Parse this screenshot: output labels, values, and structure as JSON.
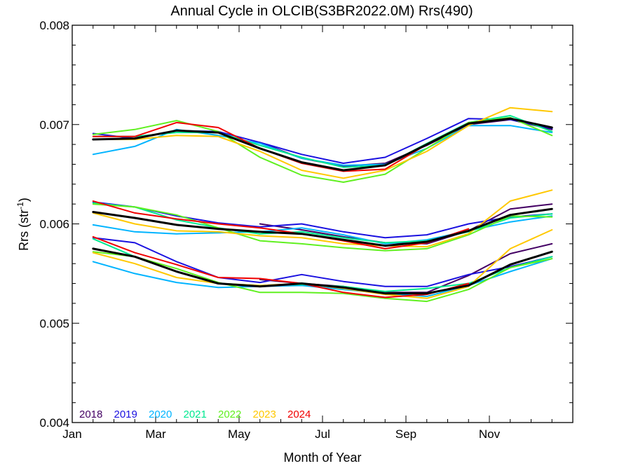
{
  "chart_data": {
    "type": "line",
    "title": "Annual Cycle in OLCIB(S3BR2022.0M) Rrs(490)",
    "xlabel": "Month of Year",
    "ylabel_main": "Rrs (str",
    "ylabel_sup": "-1",
    "ylabel_end": ")",
    "xlim": [
      0,
      12
    ],
    "ylim": [
      0.004,
      0.008
    ],
    "x_ticks": [
      {
        "value": 0,
        "label": "Jan"
      },
      {
        "value": 2,
        "label": "Mar"
      },
      {
        "value": 4,
        "label": "May"
      },
      {
        "value": 6,
        "label": "Jul"
      },
      {
        "value": 8,
        "label": "Sep"
      },
      {
        "value": 10,
        "label": "Nov"
      }
    ],
    "y_ticks": [
      {
        "value": 0.004,
        "label": "0.004"
      },
      {
        "value": 0.005,
        "label": "0.005"
      },
      {
        "value": 0.006,
        "label": "0.006"
      },
      {
        "value": 0.007,
        "label": "0.007"
      },
      {
        "value": 0.008,
        "label": "0.008"
      }
    ],
    "x": [
      0.5,
      1.5,
      2.5,
      3.5,
      4.5,
      5.5,
      6.5,
      7.5,
      8.5,
      9.5,
      10.5,
      11.5
    ],
    "legend_position": "bottom-left",
    "series": [
      {
        "name": "2018",
        "color": "#440064",
        "width": 2,
        "groups": [
          [
            null,
            null,
            null,
            null,
            0.00682,
            0.00666,
            0.00658,
            0.00661,
            0.00679,
            0.007,
            0.00705,
            0.00695
          ],
          [
            null,
            null,
            null,
            null,
            0.006,
            0.00594,
            0.00587,
            0.00581,
            0.0058,
            0.00593,
            0.00615,
            0.0062
          ],
          [
            null,
            null,
            null,
            null,
            0.00544,
            0.0054,
            0.00537,
            0.00531,
            0.00531,
            0.00548,
            0.0057,
            0.0058
          ]
        ]
      },
      {
        "name": "2019",
        "color": "#1a10e0",
        "width": 2,
        "groups": [
          [
            0.00691,
            0.00686,
            0.00694,
            0.00693,
            0.00682,
            0.0067,
            0.00661,
            0.00667,
            0.00686,
            0.00706,
            0.00705,
            0.00696
          ],
          [
            0.00622,
            0.00617,
            0.00608,
            0.00601,
            0.00597,
            0.006,
            0.00592,
            0.00586,
            0.00589,
            0.006,
            0.00607,
            0.0061
          ],
          [
            0.00586,
            0.00581,
            0.00562,
            0.00546,
            0.00541,
            0.00549,
            0.00542,
            0.00537,
            0.00537,
            0.00549,
            0.00557,
            0.00567
          ]
        ]
      },
      {
        "name": "2020",
        "color": "#00b4ff",
        "width": 2,
        "groups": [
          [
            0.0067,
            0.00678,
            0.00695,
            0.00689,
            0.00681,
            0.00666,
            0.00659,
            0.0066,
            0.00676,
            0.00699,
            0.00699,
            0.00692
          ],
          [
            0.00599,
            0.00592,
            0.0059,
            0.00591,
            0.00592,
            0.00596,
            0.00589,
            0.0058,
            0.00584,
            0.00593,
            0.00602,
            0.00608
          ],
          [
            0.00562,
            0.0055,
            0.00541,
            0.00536,
            0.00537,
            0.00538,
            0.00534,
            0.0053,
            0.00527,
            0.00538,
            0.00552,
            0.00565
          ]
        ]
      },
      {
        "name": "2021",
        "color": "#00e890",
        "width": 2,
        "groups": [
          [
            0.00688,
            0.00688,
            0.00692,
            0.00692,
            0.00679,
            0.00667,
            0.00657,
            0.00659,
            0.00681,
            0.00702,
            0.00709,
            0.00693
          ],
          [
            0.00621,
            0.00617,
            0.00604,
            0.00596,
            0.0059,
            0.00592,
            0.00586,
            0.00581,
            0.00583,
            0.00592,
            0.00606,
            0.0061
          ],
          [
            0.00585,
            0.00567,
            0.00552,
            0.0054,
            0.00538,
            0.00539,
            0.00537,
            0.00532,
            0.00535,
            0.0054,
            0.00556,
            0.00567
          ]
        ]
      },
      {
        "name": "2022",
        "color": "#60f020",
        "width": 2,
        "groups": [
          [
            0.0069,
            0.00695,
            0.00704,
            0.00693,
            0.00667,
            0.00649,
            0.00642,
            0.0065,
            0.00676,
            0.00702,
            0.00707,
            0.00689
          ],
          [
            0.0062,
            0.00617,
            0.00609,
            0.00596,
            0.00583,
            0.0058,
            0.00576,
            0.00573,
            0.00575,
            0.00589,
            0.00608,
            0.00607
          ],
          [
            0.00572,
            0.00567,
            0.00555,
            0.00541,
            0.00531,
            0.00531,
            0.0053,
            0.00525,
            0.00522,
            0.00534,
            0.00556,
            0.00565
          ]
        ]
      },
      {
        "name": "2023",
        "color": "#ffc800",
        "width": 2,
        "groups": [
          [
            0.00685,
            0.00685,
            0.00689,
            0.00688,
            0.00673,
            0.00654,
            0.00646,
            0.00654,
            0.00673,
            0.00699,
            0.00717,
            0.00713
          ],
          [
            0.00611,
            0.006,
            0.00593,
            0.00592,
            0.00588,
            0.00586,
            0.0058,
            0.00578,
            0.00577,
            0.0059,
            0.00623,
            0.00634
          ],
          [
            0.00571,
            0.0056,
            0.00546,
            0.0054,
            0.00538,
            0.0054,
            0.00535,
            0.00529,
            0.00525,
            0.00537,
            0.00575,
            0.00594
          ]
        ]
      },
      {
        "name": "2024",
        "color": "#f00000",
        "width": 2,
        "groups": [
          [
            0.00688,
            0.00688,
            0.00702,
            0.00697,
            0.00676,
            0.00661,
            0.00653,
            0.00655,
            0.0068,
            0.00701,
            null,
            null
          ],
          [
            0.00623,
            0.00611,
            0.00605,
            0.006,
            0.00596,
            0.0059,
            0.00583,
            0.00575,
            0.00581,
            0.00595,
            null,
            null
          ],
          [
            0.00587,
            0.00571,
            0.00559,
            0.00546,
            0.00545,
            0.0054,
            0.00531,
            0.00526,
            0.00529,
            0.0054,
            null,
            null
          ]
        ]
      },
      {
        "name": "",
        "color": "#000000",
        "width": 3,
        "groups": [
          [
            0.00685,
            0.00686,
            0.00694,
            0.00692,
            0.00676,
            0.00662,
            0.00654,
            0.00659,
            0.0068,
            0.00701,
            0.00706,
            0.00697
          ],
          [
            0.00612,
            0.00606,
            0.00599,
            0.00595,
            0.00592,
            0.0059,
            0.00584,
            0.00578,
            0.00582,
            0.00593,
            0.00609,
            0.00615
          ],
          [
            0.00575,
            0.00567,
            0.00552,
            0.0054,
            0.00537,
            0.0054,
            0.00536,
            0.0053,
            0.0053,
            0.00538,
            0.00559,
            0.00572
          ]
        ]
      }
    ]
  }
}
